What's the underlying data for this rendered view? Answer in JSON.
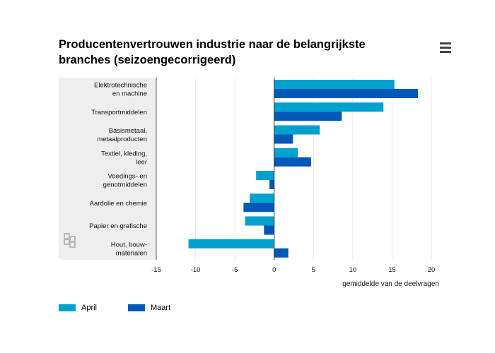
{
  "menu_icon": "hamburger-menu-icon",
  "logo_icon": "cbs-logo-icon",
  "chart_data": {
    "type": "bar",
    "orientation": "horizontal",
    "title": "Producentenvertrouwen industrie naar de belangrijkste branches (seizoengecorrigeerd)",
    "xlabel": "gemiddelde van de deelvragen",
    "xlim": [
      -15,
      20
    ],
    "xticks": [
      -15,
      -10,
      -5,
      0,
      5,
      10,
      15,
      20
    ],
    "categories": [
      [
        "Elektrotechnische",
        "en machine"
      ],
      [
        "Transportmiddelen"
      ],
      [
        "Basismetaal,",
        "metaalproducten"
      ],
      [
        "Textiel, kleding,",
        "leer"
      ],
      [
        "Voedings- en",
        "genotmiddelen"
      ],
      [
        "Aardolie en chemie"
      ],
      [
        "Papier en grafische"
      ],
      [
        "Hout, bouw-",
        "materialen"
      ]
    ],
    "series": [
      {
        "name": "April",
        "color": "#00a1cd",
        "values": [
          15.3,
          13.9,
          5.8,
          3.0,
          -2.3,
          -3.1,
          -3.7,
          -10.9
        ]
      },
      {
        "name": "Maart",
        "color": "#0058b8",
        "values": [
          18.3,
          8.6,
          2.4,
          4.7,
          -0.6,
          -3.9,
          -1.3,
          1.8
        ]
      }
    ],
    "grid": "vertical",
    "legend_position": "bottom-left"
  }
}
